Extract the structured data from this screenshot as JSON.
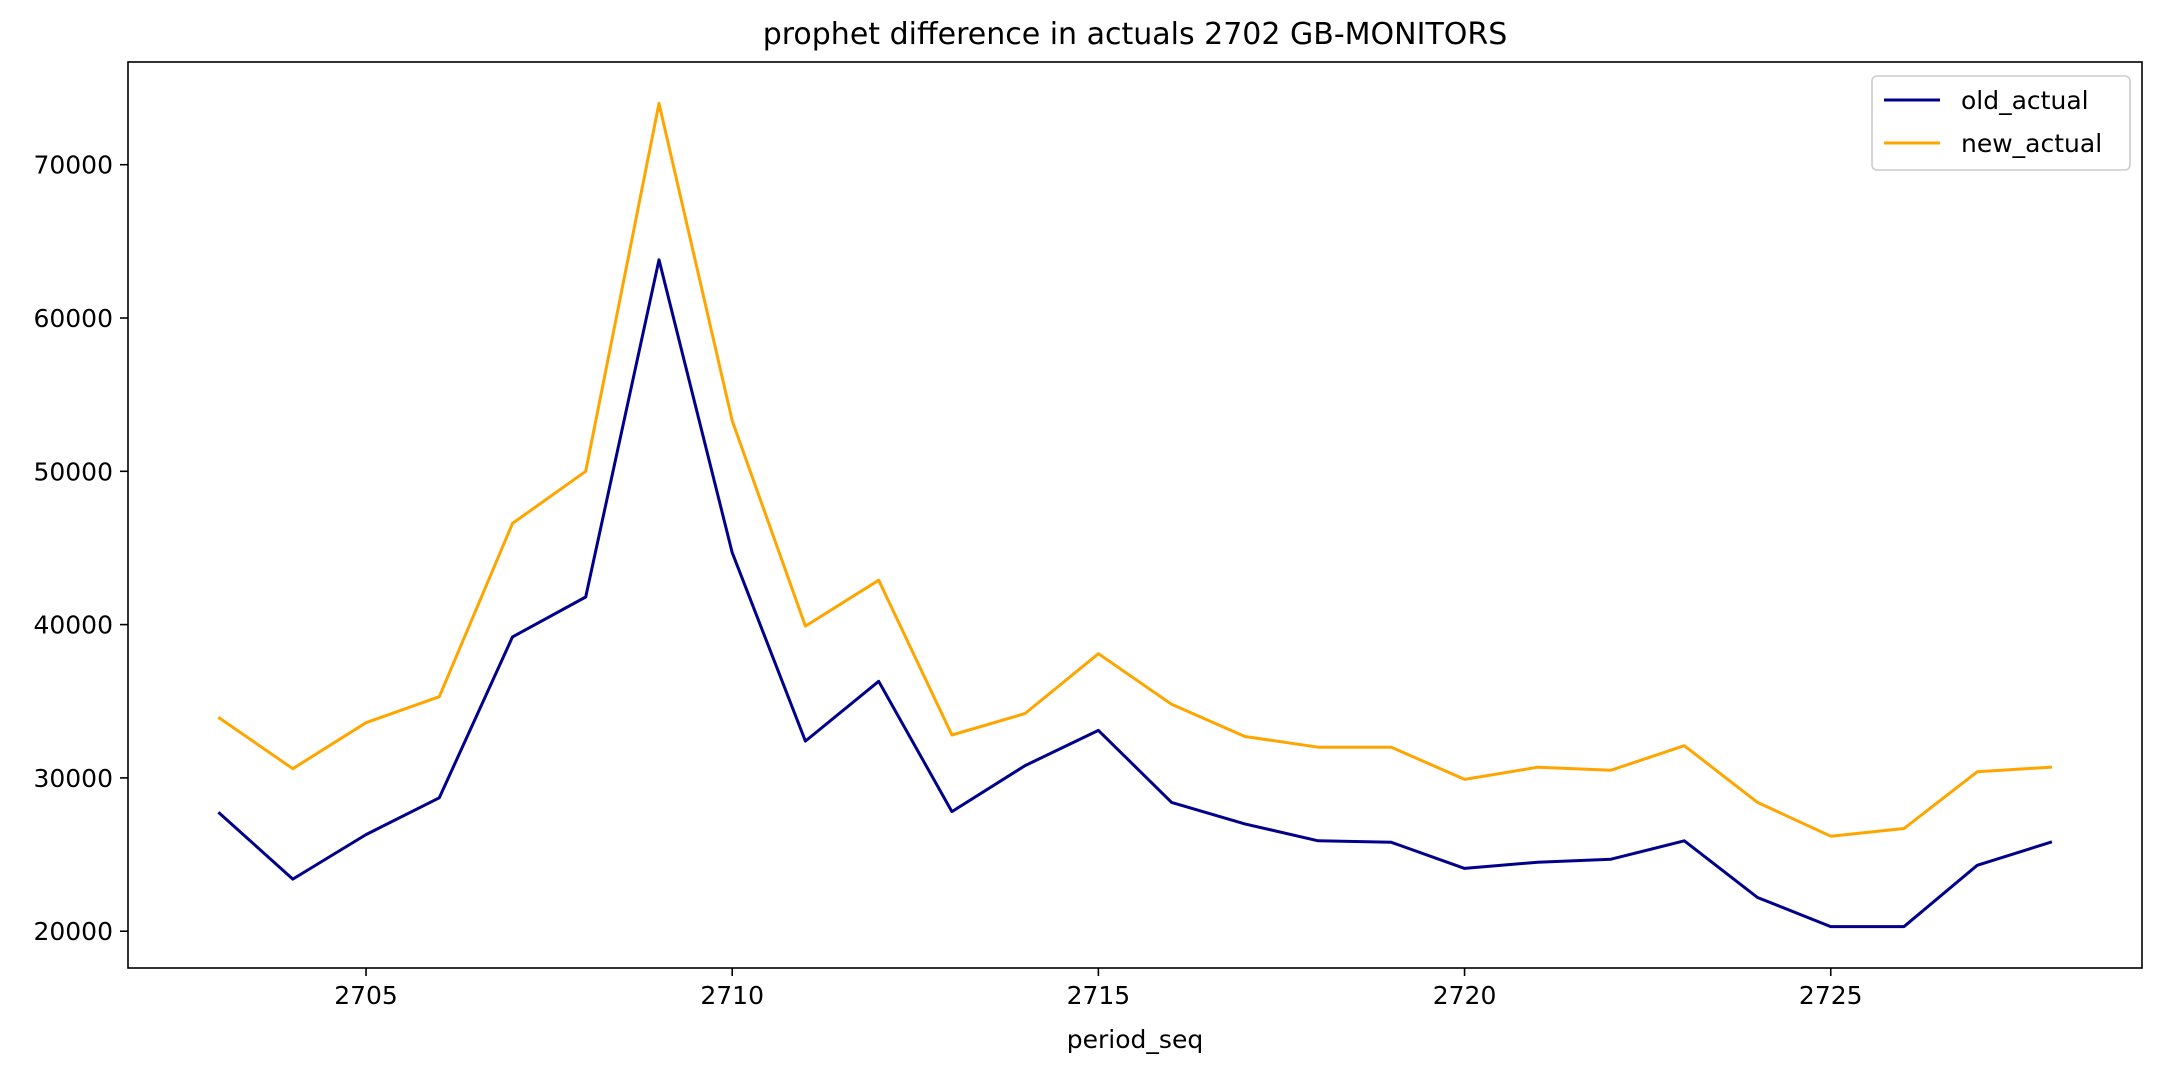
{
  "chart_data": {
    "type": "line",
    "title": "prophet difference in actuals 2702 GB-MONITORS",
    "xlabel": "period_seq",
    "ylabel": "",
    "x": [
      2703,
      2704,
      2705,
      2706,
      2707,
      2708,
      2709,
      2710,
      2711,
      2712,
      2713,
      2714,
      2715,
      2716,
      2717,
      2718,
      2719,
      2720,
      2721,
      2722,
      2723,
      2724,
      2725,
      2726,
      2727,
      2728
    ],
    "xlim": [
      2701.75,
      2729.25
    ],
    "ylim": [
      17600,
      76700
    ],
    "xticks": [
      2705,
      2710,
      2715,
      2720,
      2725
    ],
    "xtick_labels": [
      "2705",
      "2710",
      "2715",
      "2720",
      "2725"
    ],
    "yticks": [
      20000,
      30000,
      40000,
      50000,
      60000,
      70000
    ],
    "ytick_labels": [
      "20000",
      "30000",
      "40000",
      "50000",
      "60000",
      "70000"
    ],
    "grid": false,
    "legend_position": "top-right",
    "series": [
      {
        "name": "old_actual",
        "color": "#00008b",
        "values": [
          27700,
          23400,
          26300,
          28700,
          39200,
          41800,
          63800,
          44700,
          32400,
          36300,
          27800,
          30800,
          33100,
          28400,
          27000,
          25900,
          25800,
          24100,
          24500,
          24700,
          25900,
          22200,
          20300,
          20300,
          24300,
          25800
        ]
      },
      {
        "name": "new_actual",
        "color": "#ffa500",
        "values": [
          33900,
          30600,
          33600,
          35300,
          46600,
          50000,
          74000,
          53300,
          39900,
          42900,
          32800,
          34200,
          38100,
          34800,
          32700,
          32000,
          32000,
          29900,
          30700,
          30500,
          32100,
          28400,
          26200,
          26700,
          30400,
          30700
        ]
      }
    ]
  }
}
